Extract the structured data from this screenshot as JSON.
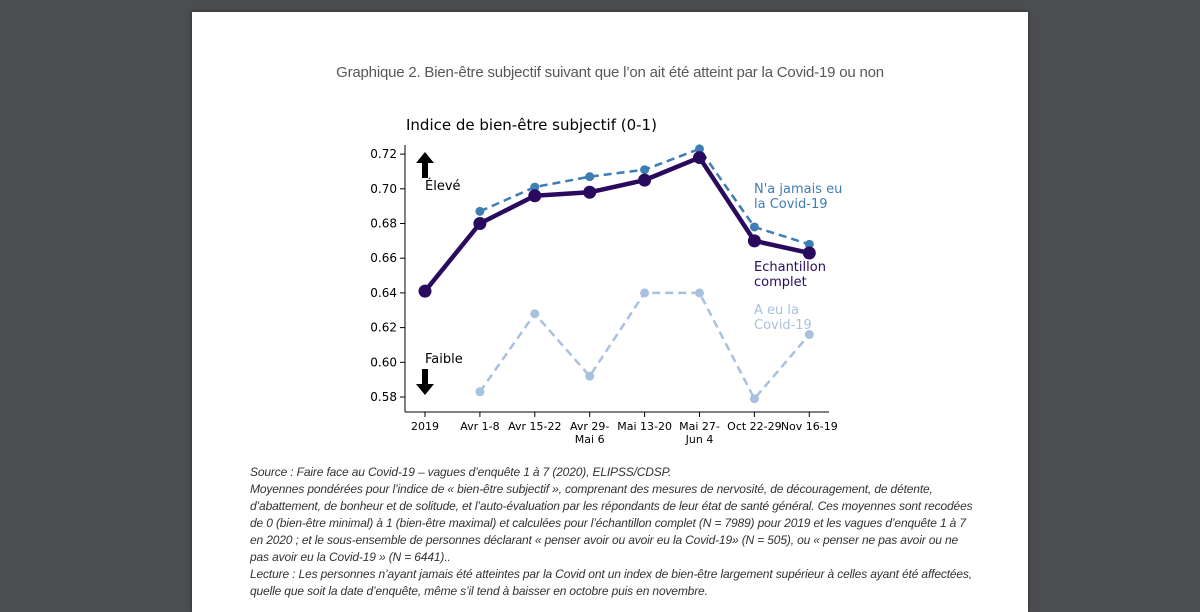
{
  "page": {
    "figure_title": "Graphique 2. Bien-être subjectif suivant que l’on ait été atteint par la Covid-19 ou non",
    "notes": [
      "Source : Faire face au Covid-19 – vagues d’enquête 1 à 7 (2020), ELIPSS/CDSP.",
      "Moyennes pondérées pour l’indice de « bien-être subjectif », comprenant des mesures de nervosité, de découragement, de détente, d’abattement, de bonheur et de solitude, et l’auto-évaluation par les répondants de leur état de santé général. Ces moyennes sont recodées de 0 (bien-être minimal) à 1 (bien-être maximal) et calculées pour l’échantillon complet (N = 7989) pour 2019 et les vagues d’enquête 1 à 7 en 2020 ; et le sous-ensemble de personnes déclarant « penser avoir ou avoir eu la Covid-19» (N = 505), ou « penser ne pas avoir ou ne pas avoir eu la Covid-19 » (N = 6441)..",
      "Lecture : Les personnes n’ayant jamais été atteintes par la Covid ont un index de bien-être largement supérieur à celles ayant été affectées, quelle que soit la date d’enquête, même s’il tend à baisser en octobre puis en novembre."
    ]
  },
  "chart_data": {
    "type": "line",
    "title": "Indice de bien-être subjectif (0-1)",
    "xlabel": "",
    "ylabel": "",
    "ylim": [
      0.575,
      0.725
    ],
    "yticks": [
      0.58,
      0.6,
      0.62,
      0.64,
      0.66,
      0.68,
      0.7,
      0.72
    ],
    "categories": [
      "2019",
      "Avr 1-8",
      "Avr 15-22",
      "Avr 29-\nMai 6",
      "Mai 13-20",
      "Mai 27-\nJun 4",
      "Oct 22-29",
      "Nov 16-19"
    ],
    "series": [
      {
        "name": "N'a jamais eu\nla Covid-19",
        "style": "dashed",
        "color": "#3f7db5",
        "values": [
          null,
          0.687,
          0.701,
          0.707,
          0.711,
          0.723,
          0.678,
          0.668
        ]
      },
      {
        "name": "Echantillon\ncomplet",
        "style": "solid",
        "color": "#2a0a5e",
        "values": [
          0.641,
          0.68,
          0.696,
          0.698,
          0.705,
          0.718,
          0.67,
          0.663
        ]
      },
      {
        "name": "A eu la\nCovid-19",
        "style": "dashed",
        "color": "#a9c1de",
        "values": [
          null,
          0.583,
          0.628,
          0.592,
          0.64,
          0.64,
          0.579,
          0.616
        ]
      }
    ],
    "annotations": {
      "up_label": "Élevé",
      "down_label": "Faible"
    }
  }
}
